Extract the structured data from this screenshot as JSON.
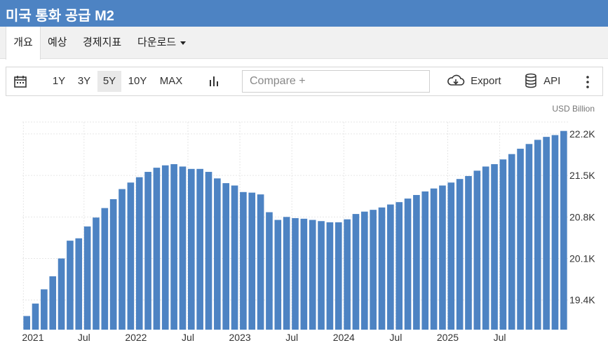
{
  "header": {
    "title": "미국 통화 공급 M2"
  },
  "tabs": [
    {
      "label": "개요"
    },
    {
      "label": "예상"
    },
    {
      "label": "경제지표"
    },
    {
      "label": "다운로드"
    }
  ],
  "toolbar": {
    "ranges": [
      "1Y",
      "3Y",
      "5Y",
      "10Y",
      "MAX"
    ],
    "active_range": "5Y",
    "compare_placeholder": "Compare +",
    "export_label": "Export",
    "api_label": "API"
  },
  "colors": {
    "bar": "#4d83c3",
    "header": "#4d83c3"
  },
  "chart_data": {
    "type": "bar",
    "unit": "USD Billion",
    "y_ticks": [
      19400,
      20100,
      20800,
      21500,
      22200
    ],
    "y_tick_labels": [
      "19.4K",
      "20.1K",
      "20.8K",
      "21.5K",
      "22.2K"
    ],
    "ylim": [
      18900,
      22400
    ],
    "x_tick_labels": [
      {
        "label": "2021",
        "index": 0
      },
      {
        "label": "Jul",
        "index": 7
      },
      {
        "label": "2022",
        "index": 13
      },
      {
        "label": "Jul",
        "index": 19
      },
      {
        "label": "2023",
        "index": 25
      },
      {
        "label": "Jul",
        "index": 31
      },
      {
        "label": "2024",
        "index": 37
      },
      {
        "label": "Jul",
        "index": 43
      },
      {
        "label": "2025",
        "index": 49
      },
      {
        "label": "Jul",
        "index": 55
      }
    ],
    "values": [
      19130,
      19340,
      19580,
      19800,
      20100,
      20400,
      20440,
      20640,
      20790,
      20950,
      21100,
      21270,
      21380,
      21470,
      21560,
      21630,
      21670,
      21690,
      21650,
      21610,
      21610,
      21560,
      21450,
      21370,
      21330,
      21220,
      21210,
      21180,
      20880,
      20750,
      20800,
      20780,
      20770,
      20750,
      20730,
      20710,
      20710,
      20760,
      20850,
      20890,
      20920,
      20960,
      21010,
      21050,
      21110,
      21170,
      21230,
      21280,
      21330,
      21380,
      21440,
      21490,
      21580,
      21650,
      21690,
      21770,
      21860,
      21950,
      22030,
      22100,
      22150,
      22180,
      22250
    ]
  }
}
